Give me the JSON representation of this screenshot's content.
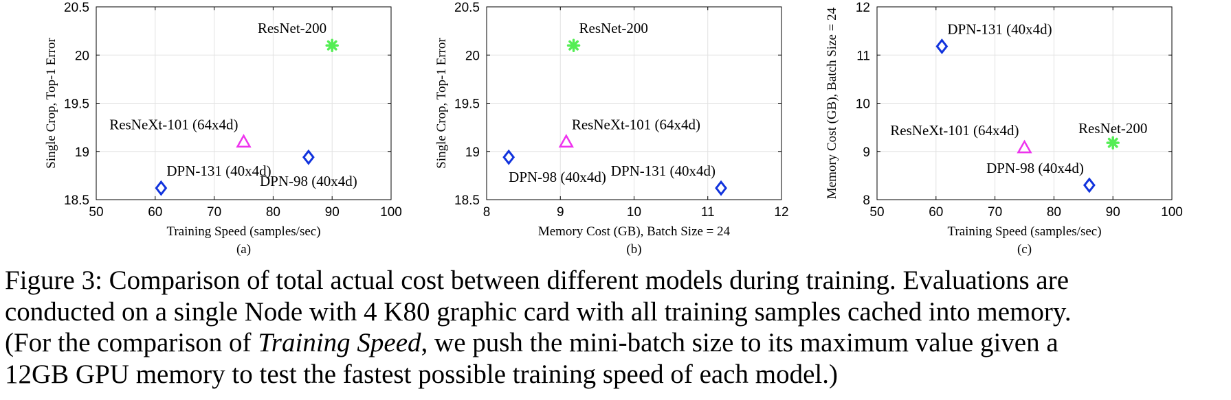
{
  "chart_data": [
    {
      "type": "scatter",
      "subcaption": "(a)",
      "xlabel": "Training Speed (samples/sec)",
      "ylabel": "Single Crop, Top-1 Error",
      "xlim": [
        50,
        100
      ],
      "ylim": [
        18.5,
        20.5
      ],
      "xticks": [
        "50",
        "60",
        "70",
        "80",
        "90",
        "100"
      ],
      "yticks": [
        "18.5",
        "19",
        "19.5",
        "20",
        "20.5"
      ],
      "grid": true,
      "points": [
        {
          "label": "ResNet-200",
          "x": 90,
          "y": 20.1,
          "marker": "star",
          "color": "#55ee55",
          "label_pos": "above-left"
        },
        {
          "label": "ResNeXt-101 (64x4d)",
          "x": 75,
          "y": 19.1,
          "marker": "triangle",
          "color": "#ee33ee",
          "label_pos": "above-left"
        },
        {
          "label": "DPN-98 (40x4d)",
          "x": 86,
          "y": 18.94,
          "marker": "diamond",
          "color": "#1133dd",
          "label_pos": "below"
        },
        {
          "label": "DPN-131 (40x4d)",
          "x": 61,
          "y": 18.62,
          "marker": "diamond",
          "color": "#1133dd",
          "label_pos": "above-right"
        }
      ]
    },
    {
      "type": "scatter",
      "subcaption": "(b)",
      "xlabel": "Memory Cost (GB), Batch Size = 24",
      "ylabel": "Single Crop, Top-1 Error",
      "xlim": [
        8,
        12
      ],
      "ylim": [
        18.5,
        20.5
      ],
      "xticks": [
        "8",
        "9",
        "10",
        "11",
        "12"
      ],
      "yticks": [
        "18.5",
        "19",
        "19.5",
        "20",
        "20.5"
      ],
      "grid": true,
      "points": [
        {
          "label": "ResNet-200",
          "x": 9.18,
          "y": 20.1,
          "marker": "star",
          "color": "#55ee55",
          "label_pos": "above-right"
        },
        {
          "label": "ResNeXt-101 (64x4d)",
          "x": 9.08,
          "y": 19.1,
          "marker": "triangle",
          "color": "#ee33ee",
          "label_pos": "above-right"
        },
        {
          "label": "DPN-98 (40x4d)",
          "x": 8.3,
          "y": 18.94,
          "marker": "diamond",
          "color": "#1133dd",
          "label_pos": "below-right"
        },
        {
          "label": "DPN-131 (40x4d)",
          "x": 11.18,
          "y": 18.62,
          "marker": "diamond",
          "color": "#1133dd",
          "label_pos": "above-left"
        }
      ]
    },
    {
      "type": "scatter",
      "subcaption": "(c)",
      "xlabel": "Training Speed (samples/sec)",
      "ylabel": "Memory Cost (GB), Batch Size = 24",
      "xlim": [
        50,
        100
      ],
      "ylim": [
        8,
        12
      ],
      "xticks": [
        "50",
        "60",
        "70",
        "80",
        "90",
        "100"
      ],
      "yticks": [
        "8",
        "9",
        "10",
        "11",
        "12"
      ],
      "grid": true,
      "points": [
        {
          "label": "DPN-131 (40x4d)",
          "x": 61,
          "y": 11.18,
          "marker": "diamond",
          "color": "#1133dd",
          "label_pos": "above-right"
        },
        {
          "label": "ResNeXt-101 (64x4d)",
          "x": 75,
          "y": 9.08,
          "marker": "triangle",
          "color": "#ee33ee",
          "label_pos": "above-left"
        },
        {
          "label": "ResNet-200",
          "x": 90,
          "y": 9.18,
          "marker": "star",
          "color": "#55ee55",
          "label_pos": "above"
        },
        {
          "label": "DPN-98 (40x4d)",
          "x": 86,
          "y": 8.3,
          "marker": "diamond",
          "color": "#1133dd",
          "label_pos": "above-left"
        }
      ]
    }
  ],
  "caption": {
    "line1": "Figure 3: Comparison of total actual cost between different models during training. Evaluations are",
    "line2": "conducted on a single Node with 4 K80 graphic card with all training samples cached into memory.",
    "line3_pre": "(For the comparison of ",
    "line3_em": "Training Speed",
    "line3_post": ", we push the mini-batch size to its maximum value given a",
    "line4": "12GB GPU memory to test the fastest possible training speed of each model.)"
  }
}
